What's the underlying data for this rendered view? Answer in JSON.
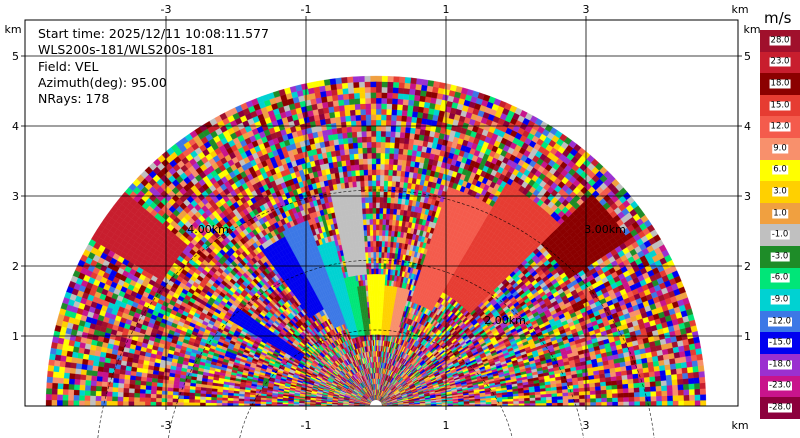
{
  "header": {
    "start_time": "Start time: 2025/12/11 10:08:11.577",
    "instrument": "WLS200s-181/WLS200s-181",
    "field": "Field: VEL",
    "azimuth": "Azimuth(deg): 95.00",
    "nrays": "NRays: 178"
  },
  "axes": {
    "unit": "km",
    "x_ticks": [
      "-3",
      "-1",
      "1",
      "3"
    ],
    "y_ticks": [
      "5",
      "4",
      "3",
      "2",
      "1"
    ],
    "ring_labels": [
      "4.00km",
      "3.00km",
      "2.00km"
    ]
  },
  "colorbar": {
    "title": "m/s",
    "entries": [
      {
        "label": "28.0",
        "color": "#a0102c"
      },
      {
        "label": "23.0",
        "color": "#c81e2e"
      },
      {
        "label": "18.0",
        "color": "#8b0000"
      },
      {
        "label": "15.0",
        "color": "#e63c32"
      },
      {
        "label": "12.0",
        "color": "#f45b4c"
      },
      {
        "label": "9.0",
        "color": "#f8906c"
      },
      {
        "label": "6.0",
        "color": "#ffff00"
      },
      {
        "label": "3.0",
        "color": "#ffd000"
      },
      {
        "label": "1.0",
        "color": "#f0a040"
      },
      {
        "label": "-1.0",
        "color": "#c0c0c0"
      },
      {
        "label": "-3.0",
        "color": "#1e8c28"
      },
      {
        "label": "-6.0",
        "color": "#00e678"
      },
      {
        "label": "-9.0",
        "color": "#00d2d2"
      },
      {
        "label": "-12.0",
        "color": "#3c78e6"
      },
      {
        "label": "-15.0",
        "color": "#0000f0"
      },
      {
        "label": "-18.0",
        "color": "#9b30d0"
      },
      {
        "label": "-23.0",
        "color": "#c8148c"
      },
      {
        "label": "-28.0",
        "color": "#8c003c"
      }
    ]
  }
}
